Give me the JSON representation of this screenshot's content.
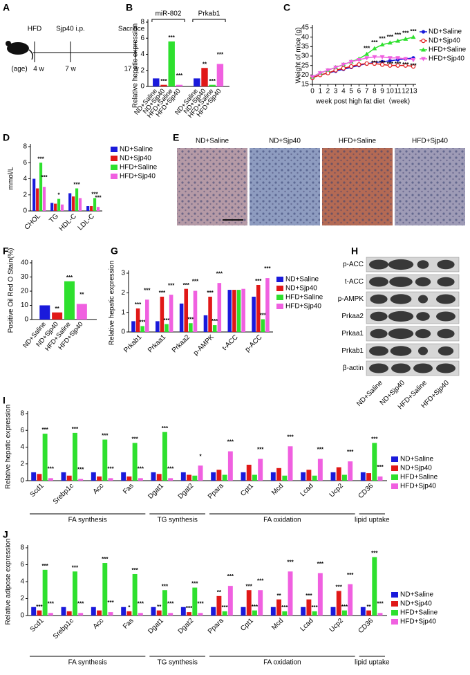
{
  "panel_labels": [
    "A",
    "B",
    "C",
    "D",
    "E",
    "F",
    "G",
    "H",
    "I",
    "J"
  ],
  "timeline": {
    "diet": "HFD",
    "treatment": "Sjp40 i.p.",
    "endpoint": "Sacrifice",
    "age_label": "(age)",
    "ages": [
      "4 w",
      "7 w",
      "17 w"
    ]
  },
  "micrographs": {
    "labels": [
      "ND+Saline",
      "ND+Sjp40",
      "HFD+Saline",
      "HFD+Sjp40"
    ]
  },
  "western_blot": {
    "proteins": [
      "p-ACC",
      "t-ACC",
      "p-AMPK",
      "Prkaa2",
      "Prkaa1",
      "Prkab1",
      "β-actin"
    ],
    "lanes": [
      "ND+Saline",
      "ND+Sjp40",
      "HFD+Saline",
      "HFD+Sjp40"
    ]
  },
  "chart_data": [
    {
      "type": "bar",
      "y_label": "Relative hepatic expression",
      "categories": [
        "miR-802",
        "Prkab1"
      ],
      "category_label_position": "top",
      "bar_labels": true,
      "legend": false,
      "ylim": [
        0,
        8
      ],
      "yticks": [
        0,
        2,
        4,
        6,
        8
      ],
      "series": [
        {
          "name": "ND+Saline",
          "color": "#1a1adb",
          "values": [
            1.0,
            1.0
          ]
        },
        {
          "name": "ND+Sjp40",
          "color": "#e01818",
          "values": [
            0.2,
            2.3
          ],
          "significance": [
            "***",
            "**"
          ]
        },
        {
          "name": "HFD+Saline",
          "color": "#2ee02e",
          "values": [
            5.6,
            0.2
          ],
          "significance": [
            "***",
            "***"
          ]
        },
        {
          "name": "HFD+Sjp40",
          "color": "#f060e0",
          "values": [
            0.2,
            2.8
          ],
          "significance": [
            "***",
            "***"
          ]
        }
      ]
    },
    {
      "type": "line",
      "y_label": "Weight of mice (g)",
      "x_label": "week post high fat diet（week)",
      "x": [
        0,
        1,
        2,
        3,
        4,
        5,
        6,
        7,
        8,
        9,
        10,
        11,
        12,
        13
      ],
      "xlim": [
        0,
        13
      ],
      "xticks": [
        0,
        1,
        2,
        3,
        4,
        5,
        6,
        7,
        8,
        9,
        10,
        11,
        12,
        13
      ],
      "ylim": [
        15,
        45
      ],
      "yticks": [
        15,
        20,
        25,
        30,
        35,
        40,
        45
      ],
      "legend": "right",
      "series": [
        {
          "name": "ND+Saline",
          "color": "#1a1adb",
          "marker": "circle",
          "values": [
            18.5,
            20,
            21,
            22,
            23,
            24,
            25,
            26,
            26.5,
            27,
            27.5,
            28,
            28.5,
            29
          ]
        },
        {
          "name": "ND+Sjp40",
          "color": "#e01818",
          "marker": "open-circle",
          "values": [
            18.5,
            20,
            21,
            22.5,
            23.5,
            24.5,
            25.5,
            26,
            26,
            25.5,
            25,
            25,
            25,
            24.5
          ]
        },
        {
          "name": "HFD+Saline",
          "color": "#2ee02e",
          "marker": "triangle",
          "values": [
            19,
            21,
            22.5,
            24,
            25.5,
            27,
            28.5,
            31,
            34,
            36,
            37,
            38,
            39,
            40
          ],
          "significance": [
            null,
            null,
            null,
            null,
            null,
            null,
            null,
            "***",
            "***",
            "***",
            "***",
            "***",
            "***",
            "***"
          ]
        },
        {
          "name": "HFD+Sjp40",
          "color": "#f060e0",
          "marker": "triangle-down",
          "values": [
            19,
            21,
            22.5,
            24,
            25.5,
            27,
            28,
            29,
            29.5,
            29.5,
            29,
            29,
            28.5,
            28
          ],
          "significance": [
            null,
            null,
            null,
            null,
            null,
            null,
            null,
            null,
            "***",
            "***",
            "***",
            "***",
            "***",
            "***"
          ]
        }
      ]
    },
    {
      "type": "bar",
      "y_label": "mmol/L",
      "categories": [
        "CHOL",
        "TG",
        "HDL-C",
        "LDL-C"
      ],
      "legend": "right",
      "ylim": [
        0,
        8
      ],
      "yticks": [
        0,
        2,
        4,
        6,
        8
      ],
      "series": [
        {
          "name": "ND+Saline",
          "color": "#1a1adb",
          "values": [
            4.0,
            1.0,
            2.2,
            0.6
          ]
        },
        {
          "name": "ND+Sjp40",
          "color": "#e01818",
          "values": [
            2.8,
            0.9,
            1.8,
            0.6
          ]
        },
        {
          "name": "HFD+Saline",
          "color": "#2ee02e",
          "values": [
            6.0,
            1.5,
            2.8,
            1.6
          ],
          "significance": [
            "***",
            "*",
            "***",
            "***"
          ]
        },
        {
          "name": "HFD+Sjp40",
          "color": "#f060e0",
          "values": [
            3.0,
            0.8,
            1.6,
            0.5
          ],
          "significance": [
            "***",
            null,
            null,
            "***"
          ]
        }
      ]
    },
    {
      "type": "bar",
      "y_label": "Positive Oil Red O Stain(%)",
      "categories": [
        null
      ],
      "bar_labels": true,
      "legend": false,
      "ylim": [
        0,
        40
      ],
      "yticks": [
        0,
        10,
        20,
        30,
        40
      ],
      "series": [
        {
          "name": "ND+Saline",
          "color": "#1a1adb",
          "values": [
            10
          ]
        },
        {
          "name": "ND+Sjp40",
          "color": "#e01818",
          "values": [
            5
          ],
          "significance": [
            "**"
          ]
        },
        {
          "name": "HFD+Saline",
          "color": "#2ee02e",
          "values": [
            27
          ],
          "significance": [
            "***"
          ]
        },
        {
          "name": "HFD+Sjp40",
          "color": "#f060e0",
          "values": [
            11
          ],
          "significance": [
            "**"
          ]
        }
      ]
    },
    {
      "type": "bar",
      "y_label": "Relative hepatic expression",
      "categories": [
        "Prkab1",
        "Prkaa1",
        "Prkaa2",
        "p-AMPK",
        "t-ACC",
        "p-ACC"
      ],
      "legend": "right",
      "ylim": [
        0,
        3
      ],
      "yticks": [
        0,
        1,
        2,
        3
      ],
      "series": [
        {
          "name": "ND+Saline",
          "color": "#1a1adb",
          "values": [
            0.55,
            0.55,
            1.45,
            0.85,
            2.15,
            1.8
          ]
        },
        {
          "name": "ND+Sjp40",
          "color": "#e01818",
          "values": [
            1.2,
            1.8,
            2.2,
            1.8,
            2.15,
            2.4
          ],
          "significance": [
            "***",
            "***",
            "***",
            "***",
            null,
            "***"
          ]
        },
        {
          "name": "HFD+Saline",
          "color": "#2ee02e",
          "values": [
            0.3,
            0.4,
            0.45,
            0.35,
            2.15,
            0.65
          ],
          "significance": [
            "***",
            "***",
            "***",
            "***",
            null,
            "***"
          ]
        },
        {
          "name": "HFD+Sjp40",
          "color": "#f060e0",
          "values": [
            1.65,
            1.9,
            2.1,
            2.5,
            2.2,
            2.75
          ],
          "significance": [
            "***",
            "***",
            "***",
            "***",
            null,
            "***"
          ]
        }
      ]
    },
    {
      "type": "bar",
      "y_label": "Relative  hepatic expression",
      "groups": [
        {
          "label": "FA synthesis",
          "categories": [
            "Scd1",
            "Srebp1c",
            "Acc",
            "Fas"
          ]
        },
        {
          "label": "TG synthesis",
          "categories": [
            "Dgat1",
            "Dgat2"
          ]
        },
        {
          "label": "FA oxidation",
          "categories": [
            "Ppara",
            "Cpt1",
            "Mcd",
            "Lcad",
            "Ucp2"
          ]
        },
        {
          "label": "lipid uptake",
          "categories": [
            "CD36"
          ]
        }
      ],
      "legend": "right",
      "ylim": [
        0,
        8
      ],
      "yticks": [
        0,
        2,
        4,
        6,
        8
      ],
      "series": [
        {
          "name": "ND+Saline",
          "color": "#1a1adb",
          "values": [
            1,
            1,
            1,
            1,
            1,
            1,
            1,
            1,
            1,
            1,
            1,
            1
          ]
        },
        {
          "name": "ND+Sjp40",
          "color": "#e01818",
          "values": [
            0.8,
            0.6,
            0.5,
            0.5,
            0.8,
            0.7,
            1.3,
            1.9,
            1.5,
            1.3,
            1.6,
            0.9
          ]
        },
        {
          "name": "HFD+Saline",
          "color": "#2ee02e",
          "values": [
            5.6,
            5.7,
            4.9,
            4.5,
            5.8,
            0.6,
            0.7,
            0.7,
            0.6,
            0.6,
            0.7,
            4.5
          ],
          "significance": [
            "***",
            "***",
            "***",
            "***",
            "***",
            null,
            null,
            null,
            null,
            null,
            null,
            "***"
          ]
        },
        {
          "name": "HFD+Sjp40",
          "color": "#f060e0",
          "values": [
            0.3,
            0.2,
            0.3,
            0.3,
            0.3,
            1.8,
            3.5,
            2.6,
            4.1,
            2.6,
            2.3,
            0.5
          ],
          "significance": [
            "***",
            "***",
            "***",
            "***",
            "***",
            "*",
            "***",
            "***",
            "***",
            "***",
            "***",
            "***"
          ]
        }
      ]
    },
    {
      "type": "bar",
      "y_label": "Relative adipose expression",
      "groups": [
        {
          "label": "FA synthesis",
          "categories": [
            "Scd1",
            "Srebp1c",
            "Acc",
            "Fas"
          ]
        },
        {
          "label": "TG synthesis",
          "categories": [
            "Dgat1",
            "Dgat2"
          ]
        },
        {
          "label": "FA oxidation",
          "categories": [
            "Ppara",
            "Cpt1",
            "Mcd",
            "Lcad",
            "Ucp2"
          ]
        },
        {
          "label": "lipid uptake",
          "categories": [
            "CD36"
          ]
        }
      ],
      "legend": "right",
      "ylim": [
        0,
        8
      ],
      "yticks": [
        0,
        2,
        4,
        6,
        8
      ],
      "series": [
        {
          "name": "ND+Saline",
          "color": "#1a1adb",
          "values": [
            1,
            1,
            1,
            1,
            1,
            1,
            1,
            1,
            1,
            1,
            1,
            1
          ]
        },
        {
          "name": "ND+Sjp40",
          "color": "#e01818",
          "values": [
            0.6,
            0.5,
            0.6,
            0.5,
            0.6,
            0.4,
            2.3,
            3.0,
            1.9,
            1.9,
            2.9,
            0.6
          ],
          "significance": [
            "***",
            null,
            null,
            "*",
            "**",
            "***",
            "**",
            "***",
            "**",
            "***",
            "***",
            "**"
          ]
        },
        {
          "name": "HFD+Saline",
          "color": "#2ee02e",
          "values": [
            5.4,
            5.2,
            6.2,
            4.9,
            3.0,
            3.3,
            0.5,
            0.6,
            0.5,
            0.5,
            0.6,
            6.9
          ],
          "significance": [
            "***",
            "***",
            "***",
            "***",
            "***",
            "***",
            "***",
            "***",
            "***",
            "***",
            "***",
            "***"
          ]
        },
        {
          "name": "HFD+Sjp40",
          "color": "#f060e0",
          "values": [
            0.3,
            0.3,
            0.4,
            0.3,
            0.3,
            0.3,
            3.5,
            3.0,
            5.2,
            5.0,
            3.7,
            0.3
          ],
          "significance": [
            "***",
            "***",
            "***",
            "***",
            "***",
            "***",
            "***",
            "***",
            "***",
            "***",
            "***",
            "***"
          ]
        }
      ]
    }
  ]
}
